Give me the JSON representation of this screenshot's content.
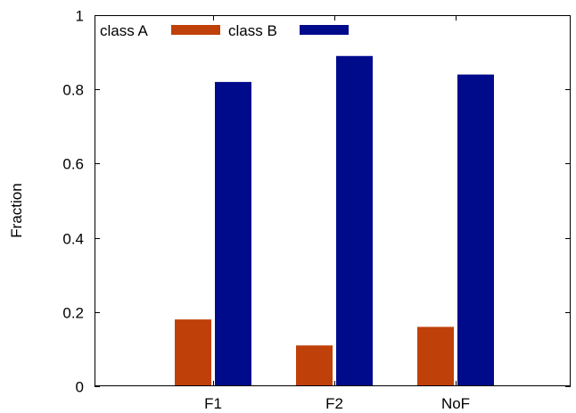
{
  "chart_data": {
    "type": "bar",
    "title": "",
    "xlabel": "",
    "ylabel": "Fraction",
    "categories": [
      "F1",
      "F2",
      "NoF"
    ],
    "series": [
      {
        "name": "class A",
        "values": [
          0.18,
          0.11,
          0.16
        ],
        "color": "#c0400a"
      },
      {
        "name": "class B",
        "values": [
          0.82,
          0.89,
          0.84
        ],
        "color": "#000b8c"
      }
    ],
    "ylim": [
      0,
      1
    ],
    "yticks": [
      0,
      0.2,
      0.4,
      0.6,
      0.8,
      1
    ],
    "ytick_labels": [
      "0",
      "0.2",
      "0.4",
      "0.6",
      "0.8",
      "1"
    ],
    "grid": false,
    "legend_position": "top-left"
  }
}
